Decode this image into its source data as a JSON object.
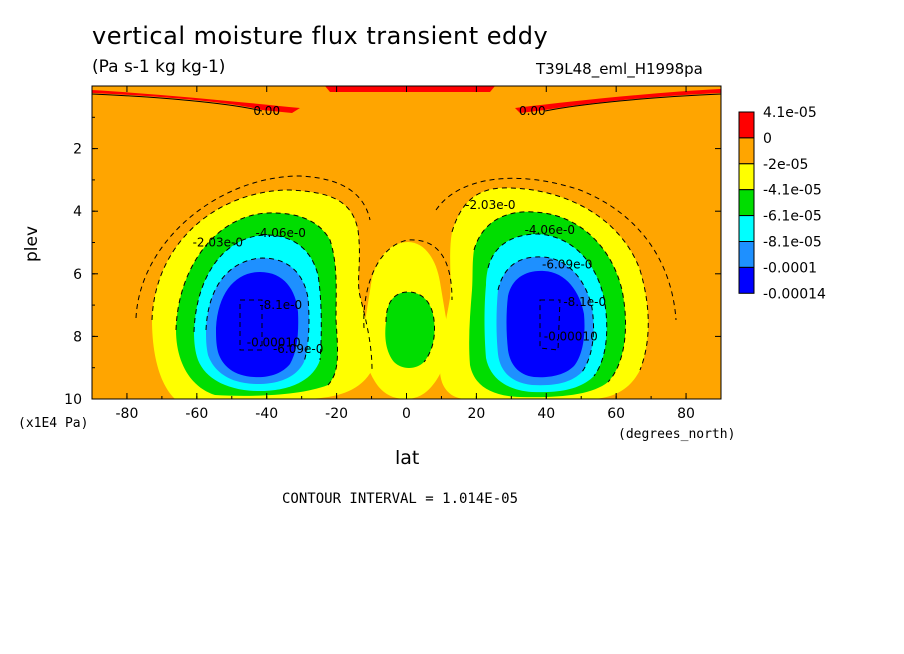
{
  "chart_data": {
    "type": "heatmap",
    "title": "vertical moisture flux transient eddy",
    "units": "(Pa s-1 kg kg-1)",
    "dataset": "T39L48_eml_H1998pa",
    "xlabel": "lat",
    "x_units": "(degrees_north)",
    "ylabel": "plev",
    "y_units": "(x1E4 Pa)",
    "xlim": [
      -90,
      90
    ],
    "ylim": [
      10,
      0
    ],
    "x_ticks": [
      "-80",
      "-60",
      "-40",
      "-20",
      "0",
      "20",
      "40",
      "60",
      "80"
    ],
    "y_ticks": [
      "2",
      "4",
      "6",
      "8",
      "10"
    ],
    "contour_interval_text": "CONTOUR INTERVAL = 1.014E-05",
    "legend": [
      {
        "label": "4.1e-05",
        "color": "#ff0000"
      },
      {
        "label": "0",
        "color": "#ffa500"
      },
      {
        "label": "-2e-05",
        "color": "#ffff00"
      },
      {
        "label": "-4.1e-05",
        "color": "#00dd00"
      },
      {
        "label": "-6.1e-05",
        "color": "#00ffff"
      },
      {
        "label": "-8.1e-05",
        "color": "#1e90ff"
      },
      {
        "label": "-0.0001",
        "color": "#0000ff"
      },
      {
        "label": "-0.00014",
        "color": ""
      }
    ],
    "contour_labels": [
      {
        "text": "0.00",
        "lat": -40,
        "plev": 0.8
      },
      {
        "text": "0.00",
        "lat": 36,
        "plev": 0.8
      },
      {
        "text": "-2.03e-0",
        "lat": -54,
        "plev": 5.0
      },
      {
        "text": "-4.06e-0",
        "lat": -36,
        "plev": 4.7
      },
      {
        "text": "-8.1e-0",
        "lat": -36,
        "plev": 7.0
      },
      {
        "text": "-0.00010",
        "lat": -38,
        "plev": 8.2
      },
      {
        "text": "-6.09e-0",
        "lat": -31,
        "plev": 8.4
      },
      {
        "text": "-2.03e-0",
        "lat": 24,
        "plev": 3.8
      },
      {
        "text": "-4.06e-0",
        "lat": 41,
        "plev": 4.6
      },
      {
        "text": "-6.09e-0",
        "lat": 46,
        "plev": 5.7
      },
      {
        "text": "-8.1e-0",
        "lat": 51,
        "plev": 6.9
      },
      {
        "text": "-0.00010",
        "lat": 47,
        "plev": 8.0
      }
    ]
  }
}
